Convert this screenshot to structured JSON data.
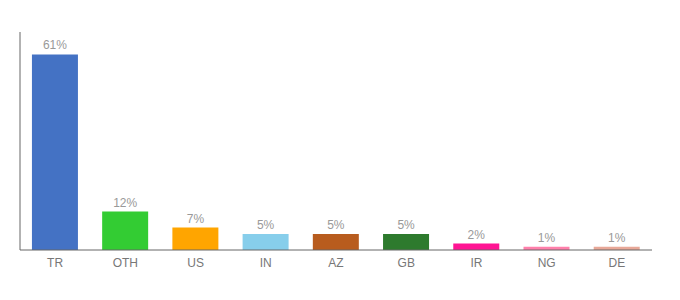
{
  "chart_data": {
    "type": "bar",
    "categories": [
      "TR",
      "OTH",
      "US",
      "IN",
      "AZ",
      "GB",
      "IR",
      "NG",
      "DE"
    ],
    "values": [
      61,
      12,
      7,
      5,
      5,
      5,
      2,
      1,
      1
    ],
    "value_labels": [
      "61%",
      "12%",
      "7%",
      "5%",
      "5%",
      "5%",
      "2%",
      "1%",
      "1%"
    ],
    "colors": [
      "#4472C4",
      "#33CC33",
      "#FFA500",
      "#87CEEB",
      "#B85C1E",
      "#2D7A2D",
      "#FF1493",
      "#FF80AB",
      "#E8A898"
    ],
    "ylim": [
      0,
      68
    ],
    "data_labels": true,
    "tick_labels": "x",
    "grid": false
  }
}
